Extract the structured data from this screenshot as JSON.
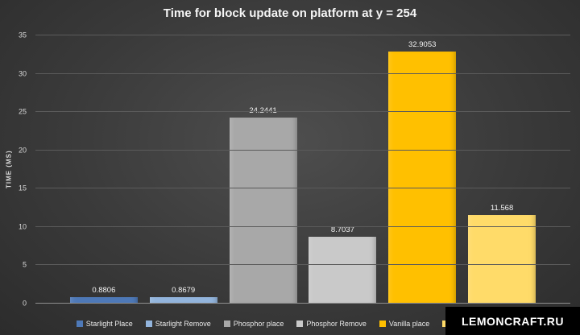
{
  "title": "Time for block update on platform at y = 254",
  "watermark": "LEMONCRAFT.RU",
  "chart_data": {
    "type": "bar",
    "title": "Time for block update on platform at y = 254",
    "xlabel": "",
    "ylabel": "TIME (MS)",
    "ylim": [
      0,
      35
    ],
    "yticks": [
      0,
      5,
      10,
      15,
      20,
      25,
      30,
      35
    ],
    "grid": true,
    "legend_position": "bottom",
    "categories": [
      "Starlight Place",
      "Starlight Remove",
      "Phosphor place",
      "Phosphor Remove",
      "Vanilla place",
      ""
    ],
    "values": [
      0.8806,
      0.8679,
      24.2441,
      8.7037,
      32.9053,
      11.568
    ],
    "data_labels": [
      "0.8806",
      "0.8679",
      "24.2441",
      "8.7037",
      "32.9053",
      "11.568"
    ],
    "bar_colors": [
      "#4e79b8",
      "#93b5dd",
      "#a8a8a8",
      "#c9c9c9",
      "#ffc000",
      "#ffdb69"
    ],
    "legend": [
      {
        "label": "Starlight Place",
        "color": "#4e79b8"
      },
      {
        "label": "Starlight Remove",
        "color": "#93b5dd"
      },
      {
        "label": "Phosphor place",
        "color": "#a8a8a8"
      },
      {
        "label": "Phosphor Remove",
        "color": "#c9c9c9"
      },
      {
        "label": "Vanilla place",
        "color": "#ffc000"
      },
      {
        "label": "",
        "color": "#ffdb69"
      }
    ]
  }
}
